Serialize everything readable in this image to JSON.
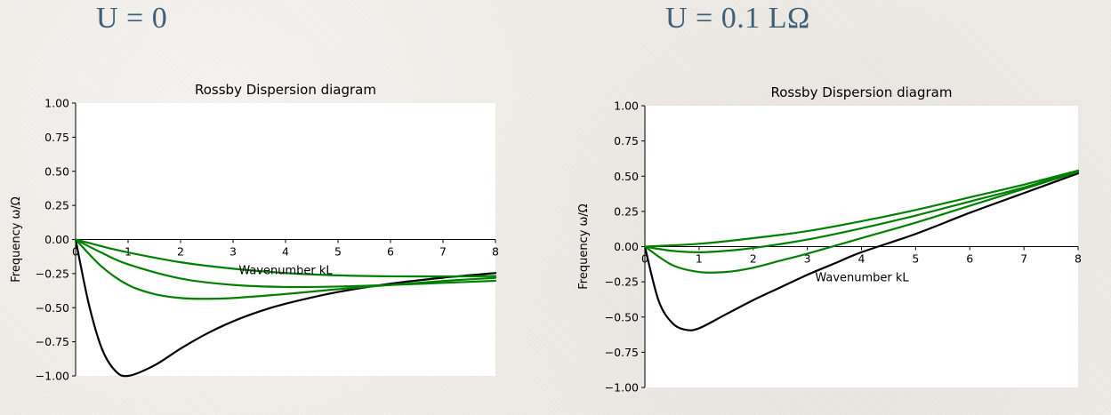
{
  "headings": {
    "left": "U = 0",
    "right": "U = 0.1 LΩ"
  },
  "chart_data": [
    {
      "type": "line",
      "title": "Rossby Dispersion diagram",
      "xlabel": "Wavenumber kL",
      "ylabel": "Frequency ω/Ω",
      "xlim": [
        0,
        8
      ],
      "ylim": [
        -1.0,
        1.0
      ],
      "xticks": [
        0,
        1,
        2,
        3,
        4,
        5,
        6,
        7,
        8
      ],
      "yticks": [
        -1.0,
        -0.75,
        -0.5,
        -0.25,
        0.0,
        0.25,
        0.5,
        0.75,
        1.0
      ],
      "xtick_labels": [
        "0",
        "1",
        "2",
        "3",
        "4",
        "5",
        "6",
        "7",
        "8"
      ],
      "ytick_labels": [
        "−1.00",
        "−0.75",
        "−0.50",
        "−0.25",
        "0.00",
        "0.25",
        "0.50",
        "0.75",
        "1.00"
      ],
      "grid": false,
      "series": [
        {
          "color": "#000000",
          "x": [
            0,
            0.25,
            0.5,
            0.75,
            1,
            1.5,
            2,
            2.5,
            3,
            3.5,
            4,
            5,
            6,
            7,
            8
          ],
          "y": [
            0,
            -0.471,
            -0.8,
            -0.96,
            -1.0,
            -0.923,
            -0.8,
            -0.69,
            -0.6,
            -0.528,
            -0.471,
            -0.385,
            -0.324,
            -0.28,
            -0.246
          ]
        },
        {
          "color": "#008000",
          "x": [
            0,
            0.5,
            1,
            1.5,
            2,
            2.5,
            3,
            4,
            5,
            6,
            7,
            8
          ],
          "y": [
            0,
            -0.2,
            -0.333,
            -0.4,
            -0.429,
            -0.435,
            -0.429,
            -0.4,
            -0.364,
            -0.333,
            -0.304,
            -0.281
          ]
        },
        {
          "color": "#008000",
          "x": [
            0,
            0.5,
            1,
            2,
            3,
            4,
            5,
            6,
            7,
            8
          ],
          "y": [
            0,
            -0.098,
            -0.182,
            -0.286,
            -0.333,
            -0.348,
            -0.345,
            -0.333,
            -0.318,
            -0.303
          ]
        },
        {
          "color": "#008000",
          "x": [
            0,
            0.5,
            1,
            2,
            3,
            4,
            5,
            6,
            7,
            8
          ],
          "y": [
            0,
            -0.05,
            -0.095,
            -0.167,
            -0.214,
            -0.246,
            -0.263,
            -0.27,
            -0.271,
            -0.268
          ]
        }
      ]
    },
    {
      "type": "line",
      "title": "Rossby Dispersion diagram",
      "xlabel": "Wavenumber kL",
      "ylabel": "Frequency ω/Ω",
      "xlim": [
        0,
        8
      ],
      "ylim": [
        -1.0,
        1.0
      ],
      "xticks": [
        0,
        1,
        2,
        3,
        4,
        5,
        6,
        7,
        8
      ],
      "yticks": [
        -1.0,
        -0.75,
        -0.5,
        -0.25,
        0.0,
        0.25,
        0.5,
        0.75,
        1.0
      ],
      "xtick_labels": [
        "0",
        "1",
        "2",
        "3",
        "4",
        "5",
        "6",
        "7",
        "8"
      ],
      "ytick_labels": [
        "−1.00",
        "−0.75",
        "−0.50",
        "−0.25",
        "0.00",
        "0.25",
        "0.50",
        "0.75",
        "1.00"
      ],
      "grid": false,
      "series": [
        {
          "color": "#000000",
          "x": [
            0,
            0.25,
            0.5,
            0.75,
            1,
            1.5,
            2,
            2.5,
            3,
            3.5,
            4,
            5,
            6,
            7,
            8
          ],
          "y": [
            0,
            -0.38,
            -0.54,
            -0.59,
            -0.58,
            -0.48,
            -0.38,
            -0.29,
            -0.2,
            -0.12,
            -0.04,
            0.09,
            0.24,
            0.38,
            0.52
          ]
        },
        {
          "color": "#008000",
          "x": [
            0,
            0.5,
            1,
            1.5,
            2,
            2.5,
            3,
            4,
            5,
            6,
            7,
            8
          ],
          "y": [
            0,
            -0.13,
            -0.18,
            -0.18,
            -0.15,
            -0.1,
            -0.05,
            0.06,
            0.17,
            0.29,
            0.41,
            0.53
          ]
        },
        {
          "color": "#008000",
          "x": [
            0,
            0.5,
            1,
            1.5,
            2,
            3,
            4,
            5,
            6,
            7,
            8
          ],
          "y": [
            0,
            -0.03,
            -0.04,
            -0.03,
            -0.01,
            0.05,
            0.13,
            0.22,
            0.32,
            0.42,
            0.54
          ]
        },
        {
          "color": "#008000",
          "x": [
            0,
            1,
            2,
            3,
            4,
            5,
            6,
            7,
            8
          ],
          "y": [
            0,
            0.02,
            0.06,
            0.11,
            0.18,
            0.26,
            0.35,
            0.44,
            0.54
          ]
        }
      ]
    }
  ]
}
